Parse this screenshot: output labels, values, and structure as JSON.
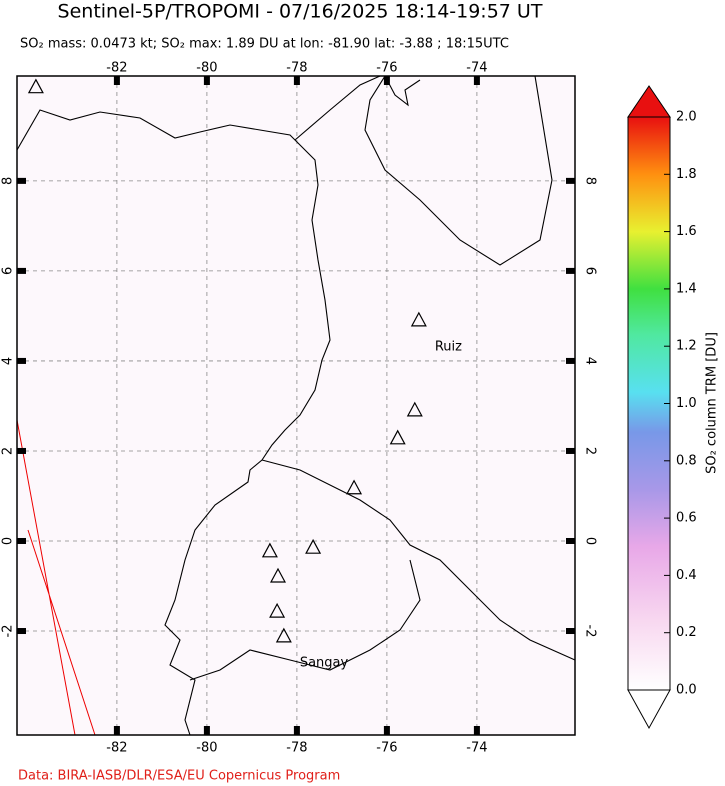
{
  "header": {
    "title": "Sentinel-5P/TROPOMI - 07/16/2025 18:14-19:57 UT",
    "subtitle": "SO₂ mass: 0.0473 kt; SO₂ max: 1.89 DU at lon: -81.90 lat: -3.88 ; 18:15UTC"
  },
  "map": {
    "lonlim": [
      -84.22,
      -71.82
    ],
    "latlim": [
      -4.31,
      10.33
    ],
    "lonticks": [
      -82,
      -80,
      -78,
      -76,
      -74
    ],
    "latticks": [
      -2,
      0,
      2,
      4,
      6,
      8
    ],
    "volcanoes": [
      {
        "lon": -75.29,
        "lat": 4.89,
        "label": "Ruiz"
      },
      {
        "lon": -75.38,
        "lat": 2.89
      },
      {
        "lon": -75.76,
        "lat": 2.27
      },
      {
        "lon": -76.73,
        "lat": 1.16
      },
      {
        "lon": -77.64,
        "lat": -0.16
      },
      {
        "lon": -78.6,
        "lat": -0.24
      },
      {
        "lon": -78.42,
        "lat": -0.8
      },
      {
        "lon": -78.44,
        "lat": -1.58
      },
      {
        "lon": -78.29,
        "lat": -2.13,
        "label": "Sangay"
      },
      {
        "lon": -83.8,
        "lat": 10.07
      }
    ]
  },
  "colorbar": {
    "label": "SO₂ column TRM [DU]",
    "lim": [
      0,
      2
    ],
    "ticks": [
      {
        "value": 0,
        "label": "0.0"
      },
      0.2,
      0.4,
      0.6,
      0.8,
      {
        "value": 1,
        "label": "1.0"
      },
      1.2,
      1.4,
      1.6,
      1.8,
      {
        "value": 2,
        "label": "2.0"
      }
    ]
  },
  "footer": "Data: BIRA-IASB/DLR/ESA/EU Copernicus Program"
}
